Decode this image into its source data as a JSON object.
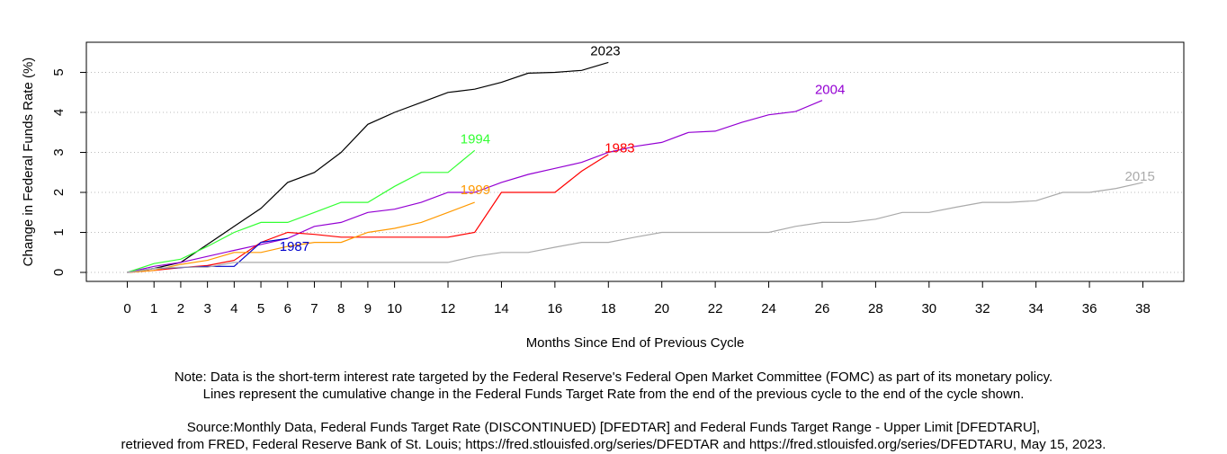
{
  "chart_data": {
    "type": "line",
    "xlabel": "Months Since End of Previous Cycle",
    "ylabel": "Change in Federal Funds Rate (%)",
    "xlim": [
      0,
      38
    ],
    "ylim": [
      0,
      5.3
    ],
    "xticks": [
      0,
      1,
      2,
      3,
      4,
      5,
      6,
      7,
      8,
      9,
      10,
      12,
      14,
      16,
      18,
      20,
      22,
      24,
      26,
      28,
      30,
      32,
      34,
      36,
      38
    ],
    "yticks": [
      0,
      1,
      2,
      3,
      4,
      5
    ],
    "grid": "horizontal-dotted",
    "series": [
      {
        "name": "2023",
        "color": "#000000",
        "x": [
          0,
          1,
          2,
          3,
          4,
          5,
          6,
          7,
          8,
          9,
          10,
          11,
          12,
          13,
          14,
          15,
          16,
          17,
          18
        ],
        "y": [
          0,
          0.1,
          0.25,
          0.7,
          1.15,
          1.6,
          2.25,
          2.5,
          3.0,
          3.7,
          4.0,
          4.25,
          4.5,
          4.58,
          4.75,
          4.98,
          5.0,
          5.05,
          5.25
        ]
      },
      {
        "name": "2004",
        "color": "#9400D3",
        "x": [
          0,
          1,
          2,
          3,
          4,
          5,
          6,
          7,
          8,
          9,
          10,
          11,
          12,
          13,
          14,
          15,
          16,
          17,
          18,
          19,
          20,
          21,
          22,
          23,
          24,
          25,
          26
        ],
        "y": [
          0,
          0.15,
          0.25,
          0.4,
          0.55,
          0.7,
          0.85,
          1.15,
          1.25,
          1.5,
          1.58,
          1.75,
          2.0,
          2.0,
          2.25,
          2.45,
          2.6,
          2.75,
          3.0,
          3.15,
          3.25,
          3.5,
          3.53,
          3.75,
          3.94,
          4.02,
          4.3
        ]
      },
      {
        "name": "1994",
        "color": "#33FF33",
        "x": [
          0,
          1,
          2,
          3,
          4,
          5,
          6,
          7,
          8,
          9,
          10,
          11,
          12,
          13
        ],
        "y": [
          0,
          0.22,
          0.33,
          0.65,
          1.0,
          1.25,
          1.25,
          1.5,
          1.75,
          1.75,
          2.15,
          2.5,
          2.5,
          3.05
        ]
      },
      {
        "name": "1983",
        "color": "#FF0000",
        "x": [
          0,
          1,
          2,
          3,
          4,
          5,
          6,
          7,
          8,
          9,
          10,
          11,
          12,
          13,
          14,
          15,
          16,
          17,
          18
        ],
        "y": [
          0,
          0.05,
          0.12,
          0.17,
          0.3,
          0.75,
          1.0,
          0.95,
          0.88,
          0.88,
          0.88,
          0.88,
          0.88,
          1.0,
          2.0,
          2.0,
          2.0,
          2.53,
          2.95
        ]
      },
      {
        "name": "1999",
        "color": "#FF9900",
        "x": [
          0,
          1,
          2,
          3,
          4,
          5,
          6,
          7,
          8,
          9,
          10,
          11,
          12,
          13
        ],
        "y": [
          0,
          0.05,
          0.2,
          0.3,
          0.5,
          0.5,
          0.65,
          0.75,
          0.75,
          1.0,
          1.1,
          1.25,
          1.5,
          1.75
        ]
      },
      {
        "name": "1987",
        "color": "#0000CC",
        "x": [
          0,
          1,
          2,
          3,
          4,
          5,
          6
        ],
        "y": [
          0,
          0.1,
          0.12,
          0.15,
          0.15,
          0.75,
          0.85
        ]
      },
      {
        "name": "2015",
        "color": "#AAAAAA",
        "x": [
          0,
          1,
          2,
          3,
          4,
          5,
          6,
          7,
          8,
          9,
          10,
          11,
          12,
          13,
          14,
          15,
          16,
          17,
          18,
          19,
          20,
          21,
          22,
          23,
          24,
          25,
          26,
          27,
          28,
          29,
          30,
          31,
          32,
          33,
          34,
          35,
          36,
          37,
          38
        ],
        "y": [
          0,
          0.1,
          0.13,
          0.13,
          0.25,
          0.25,
          0.25,
          0.25,
          0.25,
          0.25,
          0.25,
          0.25,
          0.25,
          0.4,
          0.5,
          0.5,
          0.63,
          0.75,
          0.75,
          0.88,
          1.0,
          1.0,
          1.0,
          1.0,
          1.0,
          1.15,
          1.25,
          1.25,
          1.33,
          1.5,
          1.5,
          1.63,
          1.75,
          1.75,
          1.79,
          2.0,
          2.0,
          2.1,
          2.25
        ]
      }
    ]
  },
  "notes": {
    "line1": "Note: Data is the short-term interest rate targeted by the Federal Reserve's Federal Open Market Committee (FOMC) as part of its monetary policy.",
    "line2": "Lines represent the cumulative change in the Federal Funds Target Rate from the end of the previous cycle to the end of the cycle shown.",
    "line3": "Source:Monthly Data, Federal Funds Target Rate (DISCONTINUED) [DFEDTAR] and Federal Funds Target Range - Upper Limit [DFEDTARU],",
    "line4": "retrieved from FRED, Federal Reserve Bank of St. Louis; https://fred.stlouisfed.org/series/DFEDTAR and https://fred.stlouisfed.org/series/DFEDTARU, May 15, 2023."
  }
}
